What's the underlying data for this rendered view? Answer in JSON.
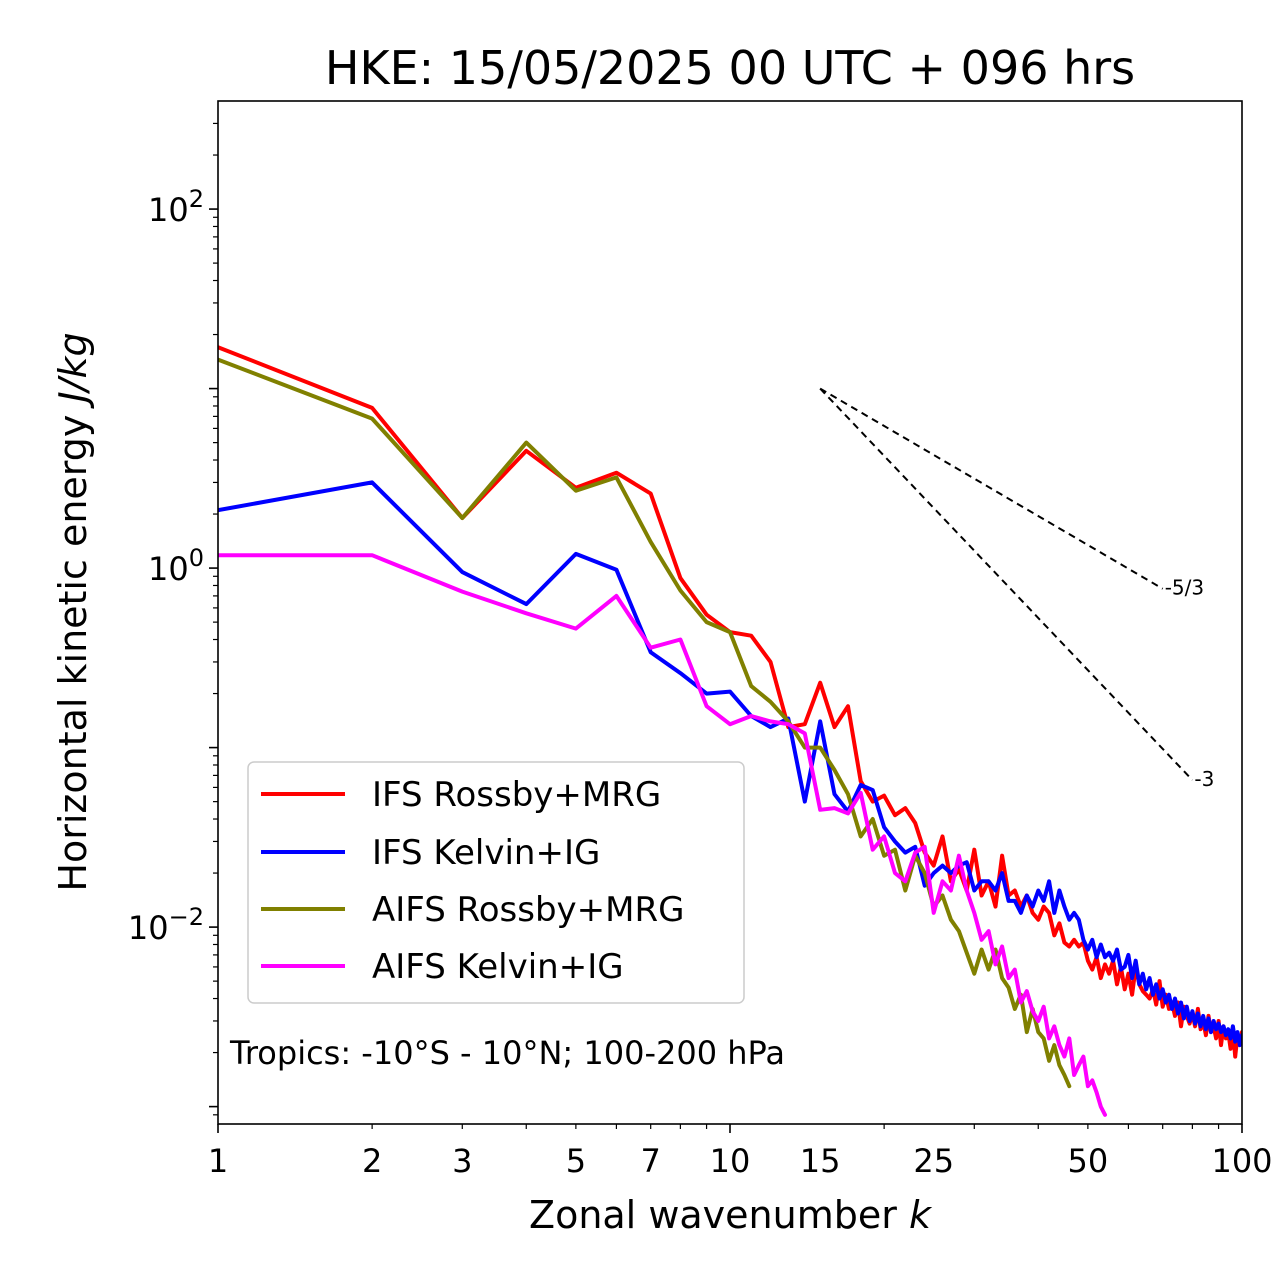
{
  "chart_data": {
    "type": "line",
    "title": "HKE: 15/05/2025 00 UTC + 096 hrs",
    "xlabel": "Zonal wavenumber",
    "xlabel_var": "k",
    "ylabel": "Horizontal kinetic energy",
    "ylabel_unit": "J/kg",
    "xscale": "log",
    "yscale": "log",
    "xlim": [
      1,
      100
    ],
    "ylim": [
      0.0008,
      400
    ],
    "xticks": [
      1,
      2,
      3,
      5,
      7,
      10,
      15,
      25,
      50,
      100
    ],
    "xtick_labels": [
      "1",
      "2",
      "3",
      "5",
      "7",
      "10",
      "15",
      "25",
      "50",
      "100"
    ],
    "yticks": [
      {
        "value": 0.01,
        "base": "10",
        "exp": "−2"
      },
      {
        "value": 1,
        "base": "10",
        "exp": "0"
      },
      {
        "value": 100,
        "base": "10",
        "exp": "2"
      }
    ],
    "legend_position": "lower-left",
    "annotation": "Tropics: -10°S - 10°N; 100-200 hPa",
    "reference_lines": [
      {
        "label": "-5/3",
        "x_start": 15,
        "y_start": 10,
        "x_end": 70,
        "slope": -1.6667
      },
      {
        "label": "-3",
        "x_start": 15,
        "y_start": 10,
        "x_end": 80,
        "slope": -3
      }
    ],
    "series": [
      {
        "name": "IFS Rossby+MRG",
        "color": "#ff0000",
        "x": [
          1,
          2,
          3,
          4,
          5,
          6,
          7,
          8,
          9,
          10,
          11,
          12,
          13,
          14,
          15,
          16,
          17,
          18,
          19,
          20,
          21,
          22,
          23,
          24,
          25,
          26,
          27,
          28,
          29,
          30,
          31,
          32,
          33,
          34,
          35,
          36,
          37,
          38,
          39,
          40,
          41,
          42,
          43,
          44,
          45,
          46,
          47,
          48,
          49,
          50,
          51,
          52,
          53,
          54,
          55,
          56,
          57,
          58,
          59,
          60,
          61,
          62,
          63,
          64,
          65,
          66,
          67,
          68,
          69,
          70,
          71,
          72,
          73,
          74,
          75,
          76,
          77,
          78,
          79,
          80,
          81,
          82,
          83,
          84,
          85,
          86,
          87,
          88,
          89,
          90,
          91,
          92,
          93,
          94,
          95,
          96,
          97,
          98,
          99,
          100
        ],
        "y": [
          17,
          7.8,
          1.9,
          4.5,
          2.8,
          3.4,
          2.6,
          0.88,
          0.55,
          0.44,
          0.42,
          0.3,
          0.13,
          0.135,
          0.23,
          0.13,
          0.17,
          0.065,
          0.05,
          0.054,
          0.042,
          0.046,
          0.038,
          0.026,
          0.022,
          0.032,
          0.018,
          0.021,
          0.016,
          0.027,
          0.015,
          0.018,
          0.013,
          0.025,
          0.015,
          0.016,
          0.013,
          0.015,
          0.012,
          0.011,
          0.013,
          0.012,
          0.009,
          0.0105,
          0.0082,
          0.0078,
          0.0085,
          0.0078,
          0.0082,
          0.0065,
          0.0058,
          0.0068,
          0.0052,
          0.0062,
          0.0055,
          0.0065,
          0.0048,
          0.006,
          0.0045,
          0.0055,
          0.0042,
          0.006,
          0.0048,
          0.0044,
          0.0042,
          0.004,
          0.0045,
          0.0037,
          0.005,
          0.0036,
          0.0042,
          0.0035,
          0.0038,
          0.0032,
          0.0038,
          0.0028,
          0.0036,
          0.0032,
          0.0029,
          0.0033,
          0.0028,
          0.0035,
          0.0027,
          0.003,
          0.0025,
          0.0032,
          0.0026,
          0.0028,
          0.0024,
          0.003,
          0.0022,
          0.0028,
          0.0024,
          0.0026,
          0.0021,
          0.0027,
          0.0019,
          0.0025,
          0.0022,
          0.0026
        ]
      },
      {
        "name": "IFS Kelvin+IG",
        "color": "#0000ff",
        "x": [
          1,
          2,
          3,
          4,
          5,
          6,
          7,
          8,
          9,
          10,
          11,
          12,
          13,
          14,
          15,
          16,
          17,
          18,
          19,
          20,
          21,
          22,
          23,
          24,
          25,
          26,
          27,
          28,
          29,
          30,
          31,
          32,
          33,
          34,
          35,
          36,
          37,
          38,
          39,
          40,
          41,
          42,
          43,
          44,
          45,
          46,
          47,
          48,
          49,
          50,
          51,
          52,
          53,
          54,
          55,
          56,
          57,
          58,
          59,
          60,
          61,
          62,
          63,
          64,
          65,
          66,
          67,
          68,
          69,
          70,
          71,
          72,
          73,
          74,
          75,
          76,
          77,
          78,
          79,
          80,
          81,
          82,
          83,
          84,
          85,
          86,
          87,
          88,
          89,
          90,
          91,
          92,
          93,
          94,
          95,
          96,
          97,
          98,
          99,
          100
        ],
        "y": [
          2.1,
          3.0,
          0.95,
          0.63,
          1.2,
          0.98,
          0.34,
          0.26,
          0.2,
          0.205,
          0.15,
          0.13,
          0.145,
          0.05,
          0.14,
          0.055,
          0.044,
          0.062,
          0.058,
          0.036,
          0.03,
          0.026,
          0.028,
          0.017,
          0.02,
          0.022,
          0.02,
          0.022,
          0.023,
          0.016,
          0.018,
          0.018,
          0.016,
          0.02,
          0.014,
          0.014,
          0.012,
          0.015,
          0.013,
          0.016,
          0.014,
          0.018,
          0.012,
          0.016,
          0.013,
          0.011,
          0.012,
          0.011,
          0.0085,
          0.0075,
          0.0085,
          0.0068,
          0.008,
          0.0068,
          0.0072,
          0.0065,
          0.0075,
          0.0058,
          0.006,
          0.007,
          0.0052,
          0.0065,
          0.0048,
          0.0055,
          0.0045,
          0.0052,
          0.0042,
          0.0048,
          0.004,
          0.0045,
          0.0038,
          0.0042,
          0.0035,
          0.004,
          0.0033,
          0.0038,
          0.0031,
          0.0036,
          0.003,
          0.0034,
          0.0029,
          0.0033,
          0.0028,
          0.0032,
          0.0027,
          0.0031,
          0.0026,
          0.003,
          0.0027,
          0.0029,
          0.0026,
          0.0028,
          0.0025,
          0.0027,
          0.0024,
          0.0028,
          0.0023,
          0.0026,
          0.0022,
          0.0025
        ]
      },
      {
        "name": "AIFS Rossby+MRG",
        "color": "#808000",
        "x": [
          1,
          2,
          3,
          4,
          5,
          6,
          7,
          8,
          9,
          10,
          11,
          12,
          13,
          14,
          15,
          16,
          17,
          18,
          19,
          20,
          21,
          22,
          23,
          24,
          25,
          26,
          27,
          28,
          29,
          30,
          31,
          32,
          33,
          34,
          35,
          36,
          37,
          38,
          39,
          40,
          41,
          42,
          43,
          44,
          45,
          46
        ],
        "y": [
          14.5,
          6.8,
          1.9,
          5.0,
          2.7,
          3.2,
          1.4,
          0.75,
          0.5,
          0.44,
          0.22,
          0.18,
          0.14,
          0.1,
          0.1,
          0.075,
          0.055,
          0.032,
          0.04,
          0.025,
          0.027,
          0.016,
          0.025,
          0.02,
          0.013,
          0.015,
          0.011,
          0.0095,
          0.0072,
          0.0055,
          0.0075,
          0.0058,
          0.0075,
          0.0052,
          0.0046,
          0.0035,
          0.0042,
          0.0026,
          0.0035,
          0.0026,
          0.0024,
          0.0018,
          0.0022,
          0.0017,
          0.0015,
          0.0013
        ]
      },
      {
        "name": "AIFS Kelvin+IG",
        "color": "#ff00ff",
        "x": [
          1,
          2,
          3,
          4,
          5,
          6,
          7,
          8,
          9,
          10,
          11,
          12,
          13,
          14,
          15,
          16,
          17,
          18,
          19,
          20,
          21,
          22,
          23,
          24,
          25,
          26,
          27,
          28,
          29,
          30,
          31,
          32,
          33,
          34,
          35,
          36,
          37,
          38,
          39,
          40,
          41,
          42,
          43,
          44,
          45,
          46,
          47,
          48,
          49,
          50,
          51,
          52,
          53,
          54
        ],
        "y": [
          1.18,
          1.18,
          0.74,
          0.56,
          0.46,
          0.7,
          0.36,
          0.4,
          0.17,
          0.135,
          0.15,
          0.14,
          0.135,
          0.12,
          0.045,
          0.046,
          0.043,
          0.056,
          0.027,
          0.032,
          0.02,
          0.018,
          0.026,
          0.028,
          0.012,
          0.018,
          0.016,
          0.025,
          0.016,
          0.012,
          0.0085,
          0.0095,
          0.0062,
          0.0078,
          0.0052,
          0.0058,
          0.0038,
          0.0044,
          0.0034,
          0.003,
          0.0036,
          0.0024,
          0.0028,
          0.0022,
          0.0019,
          0.0024,
          0.0015,
          0.0017,
          0.0019,
          0.0013,
          0.0014,
          0.0012,
          0.001,
          0.0009
        ]
      }
    ]
  }
}
